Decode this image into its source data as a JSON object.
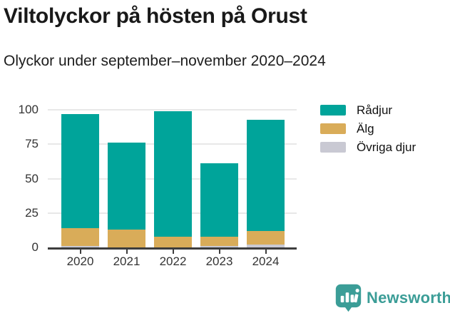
{
  "page": {
    "title": "Viltolyckor på hösten på Orust",
    "subtitle": "Olyckor under september–november 2020–2024"
  },
  "chart_data": {
    "type": "bar",
    "stacked": true,
    "title": "Viltolyckor på hösten på Orust",
    "subtitle": "Olyckor under september–november 2020–2024",
    "categories": [
      "2020",
      "2021",
      "2022",
      "2023",
      "2024"
    ],
    "series": [
      {
        "name": "Rådjur",
        "color": "#00a49a",
        "values": [
          83,
          63,
          91,
          53,
          81
        ]
      },
      {
        "name": "Älg",
        "color": "#d9ac59",
        "values": [
          13,
          13,
          8,
          7,
          10
        ]
      },
      {
        "name": "Övriga djur",
        "color": "#c9c9d3",
        "values": [
          1,
          0,
          0,
          1,
          2
        ]
      }
    ],
    "stack_order_bottom_to_top": [
      "Övriga djur",
      "Älg",
      "Rådjur"
    ],
    "totals": [
      97,
      76,
      99,
      61,
      93
    ],
    "xlabel": "",
    "ylabel": "",
    "y_ticks": [
      0,
      25,
      50,
      75,
      100
    ],
    "ylim": [
      0,
      100
    ],
    "grid": "horizontal",
    "legend_position": "right"
  },
  "colors": {
    "axis": "#3d3d3d",
    "gridline": "#e8e8e8",
    "tick_label": "#333333",
    "background": "#ffffff"
  },
  "footer": {
    "brand": "Newsworthy",
    "icon": "newsworthy-logo-icon",
    "brand_color": "#3b9d97"
  }
}
